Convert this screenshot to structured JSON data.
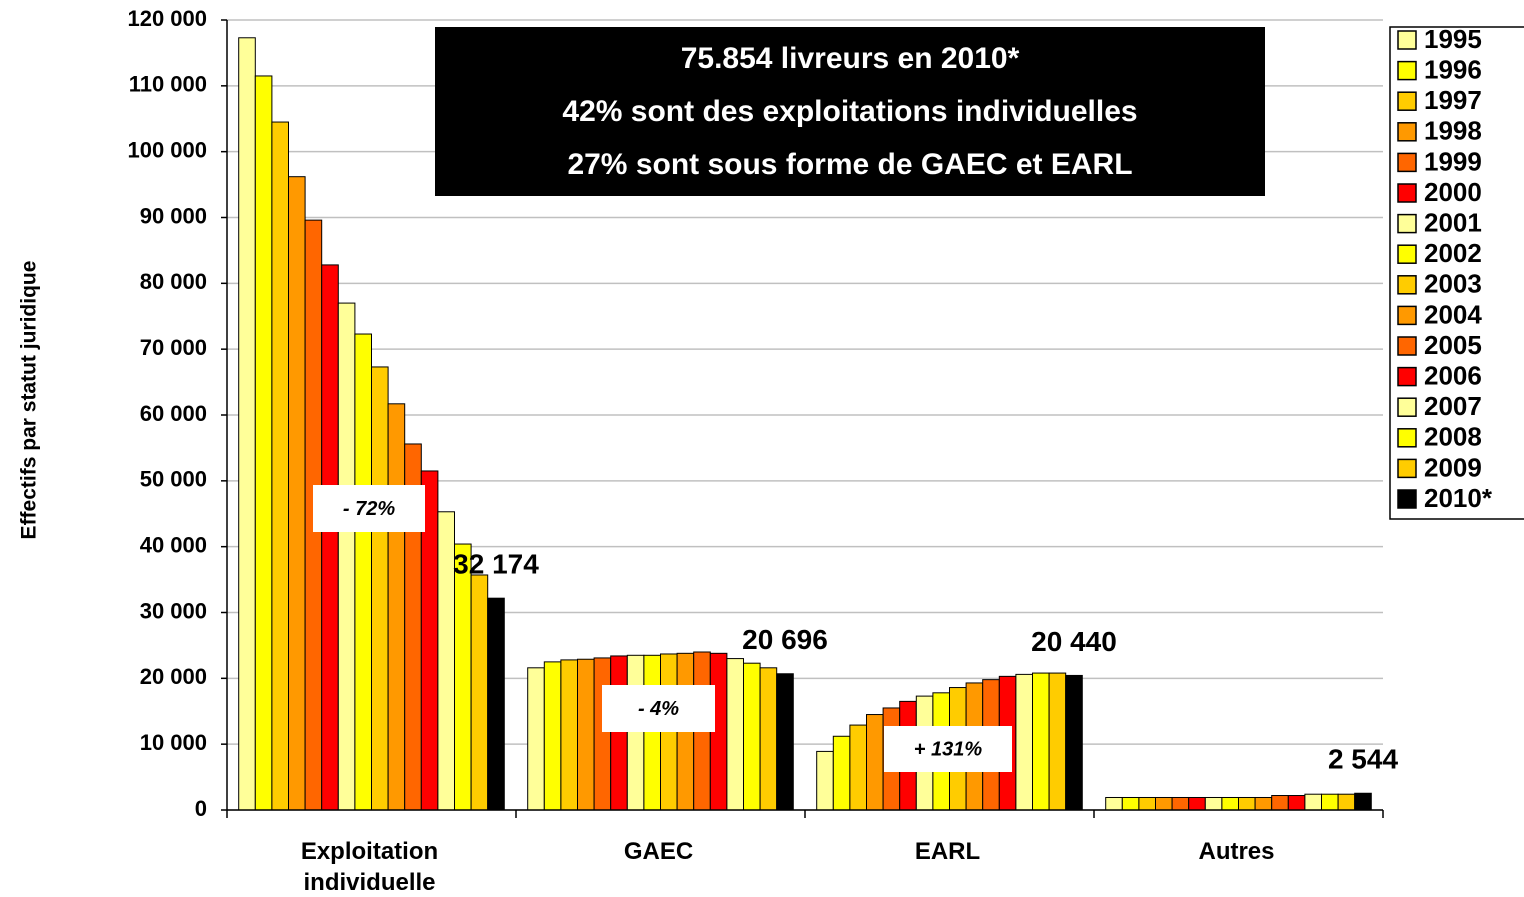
{
  "chart_data": {
    "type": "bar",
    "y_label": "Effectifs par statut juridique",
    "text_box": [
      "75.854 livreurs en 2010*",
      "42% sont des exploitations individuelles",
      "27% sont sous forme de GAEC et EARL"
    ],
    "annotations": [
      "- 72%",
      "- 4%",
      "+ 131%"
    ],
    "categories": [
      "Exploitation individuelle",
      "GAEC",
      "EARL",
      "Autres"
    ],
    "series": [
      {
        "name": "1995",
        "color": "#ffff99",
        "values": [
          117300,
          21600,
          8900,
          1900
        ]
      },
      {
        "name": "1996",
        "color": "#ffff00",
        "values": [
          111500,
          22500,
          11200,
          1900
        ]
      },
      {
        "name": "1997",
        "color": "#ffcc00",
        "values": [
          104500,
          22800,
          12900,
          1900
        ]
      },
      {
        "name": "1998",
        "color": "#ff9900",
        "values": [
          96200,
          22900,
          14500,
          1900
        ]
      },
      {
        "name": "1999",
        "color": "#ff6600",
        "values": [
          89600,
          23100,
          15500,
          1900
        ]
      },
      {
        "name": "2000",
        "color": "#ff0000",
        "values": [
          82800,
          23400,
          16500,
          1900
        ]
      },
      {
        "name": "2001",
        "color": "#ffff99",
        "values": [
          77000,
          23500,
          17300,
          1900
        ]
      },
      {
        "name": "2002",
        "color": "#ffff00",
        "values": [
          72300,
          23500,
          17800,
          1900
        ]
      },
      {
        "name": "2003",
        "color": "#ffcc00",
        "values": [
          67300,
          23700,
          18600,
          1900
        ]
      },
      {
        "name": "2004",
        "color": "#ff9900",
        "values": [
          61700,
          23800,
          19300,
          1900
        ]
      },
      {
        "name": "2005",
        "color": "#ff6600",
        "values": [
          55600,
          24000,
          19800,
          2200
        ]
      },
      {
        "name": "2006",
        "color": "#ff0000",
        "values": [
          51500,
          23800,
          20300,
          2200
        ]
      },
      {
        "name": "2007",
        "color": "#ffff99",
        "values": [
          45300,
          23000,
          20600,
          2400
        ]
      },
      {
        "name": "2008",
        "color": "#ffff00",
        "values": [
          40400,
          22300,
          20800,
          2400
        ]
      },
      {
        "name": "2009",
        "color": "#ffcc00",
        "values": [
          35700,
          21600,
          20800,
          2400
        ]
      },
      {
        "name": "2010*",
        "color": "#000000",
        "values": [
          32174,
          20696,
          20440,
          2544
        ],
        "value_labels": [
          "32 174",
          "20 696",
          "20 440",
          "2 544"
        ]
      }
    ],
    "ylim": [
      0,
      120000
    ],
    "yticks": [
      0,
      {
        "value": 10000,
        "label": "10 000"
      },
      {
        "value": 20000,
        "label": "20 000"
      },
      {
        "value": 30000,
        "label": "30 000"
      },
      {
        "value": 40000,
        "label": "40 000"
      },
      {
        "value": 50000,
        "label": "50 000"
      },
      {
        "value": 60000,
        "label": "60 000"
      },
      {
        "value": 70000,
        "label": "70 000"
      },
      {
        "value": 80000,
        "label": "80 000"
      },
      {
        "value": 90000,
        "label": "90 000"
      },
      {
        "value": 100000,
        "label": "100 000"
      },
      {
        "value": 110000,
        "label": "110 000"
      },
      {
        "value": 120000,
        "label": "120 000"
      }
    ],
    "grid": true,
    "legend": "right"
  }
}
